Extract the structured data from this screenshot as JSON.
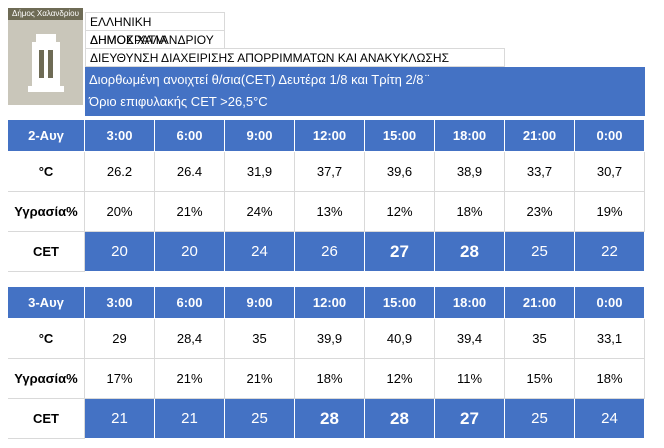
{
  "header": {
    "logo_text": "Δήμος Χαλανδρίου",
    "lines": [
      "ΕΛΛΗΝΙΚΗ ΔΗΜΟΚΡΑΤΙΑ",
      "ΔΗΜΟΣ ΧΑΛΑΝΔΡΙΟΥ",
      "ΔΙΕΥΘΥΝΣΗ ΔΙΑΧΕΙΡΙΣΗΣ ΑΠΟΡΡΙΜΜΑΤΩΝ  ΚΑΙ ΑΝΑΚΥΚΛΩΣΗΣ"
    ],
    "notice": [
      "Διορθωμένη ανοιχτεί θ/σια(CET)  Δευτέρα 1/8 και Τρίτη 2/8 ̈",
      "Όριο επιφυλακής CET >26,5°C"
    ]
  },
  "tables": [
    {
      "day": "2-Αυγ",
      "times": [
        "3:00",
        "6:00",
        "9:00",
        "12:00",
        "15:00",
        "18:00",
        "21:00",
        "0:00"
      ],
      "rows": [
        {
          "label": "°C",
          "cells": [
            "26.2",
            "26.4",
            "31,9",
            "37,7",
            "39,6",
            "38,9",
            "33,7",
            "30,7"
          ]
        },
        {
          "label": "Υγρασία%",
          "cells": [
            "20%",
            "21%",
            "24%",
            "13%",
            "12%",
            "18%",
            "23%",
            "19%"
          ]
        },
        {
          "label": "CET",
          "cells": [
            "20",
            "20",
            "24",
            "26",
            "27",
            "28",
            "25",
            "22"
          ],
          "highlight": true,
          "bold_cells": [
            4,
            5
          ]
        }
      ]
    },
    {
      "day": "3-Αυγ",
      "times": [
        "3:00",
        "6:00",
        "9:00",
        "12:00",
        "15:00",
        "18:00",
        "21:00",
        "0:00"
      ],
      "rows": [
        {
          "label": "°C",
          "cells": [
            "29",
            "28,4",
            "35",
            "39,9",
            "40,9",
            "39,4",
            "35",
            "33,1"
          ]
        },
        {
          "label": "Υγρασία%",
          "cells": [
            "17%",
            "21%",
            "21%",
            "18%",
            "12%",
            "11%",
            "15%",
            "18%"
          ]
        },
        {
          "label": "CET",
          "cells": [
            "21",
            "21",
            "25",
            "28",
            "28",
            "27",
            "25",
            "24"
          ],
          "highlight": true,
          "bold_cells": [
            3,
            4,
            5
          ]
        }
      ]
    }
  ]
}
